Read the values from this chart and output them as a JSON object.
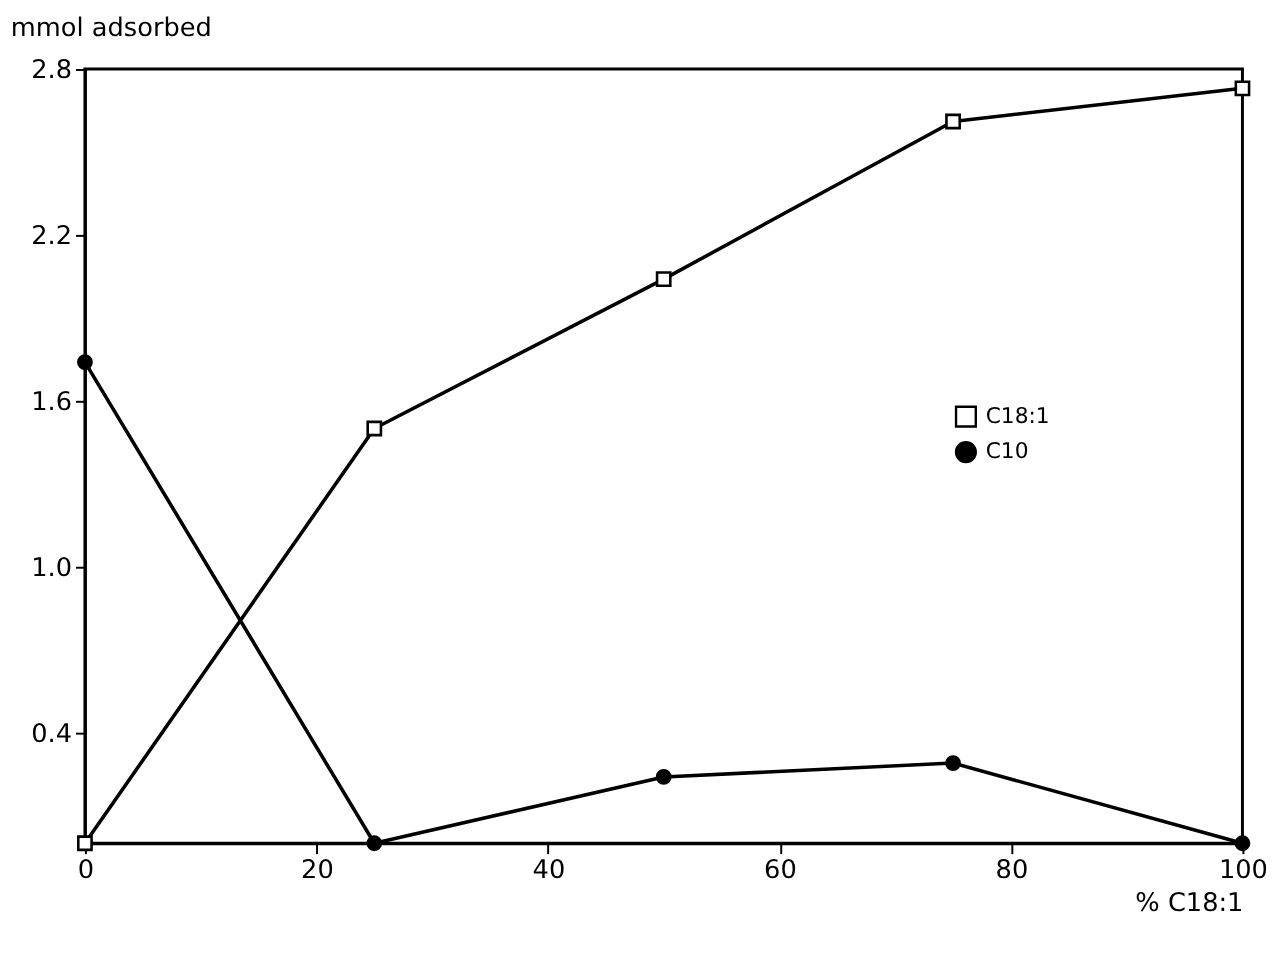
{
  "chart_data": {
    "type": "line",
    "xlabel": "% C18:1",
    "ylabel": "mmol adsorbed",
    "x": [
      0,
      25,
      50,
      75,
      100
    ],
    "series": [
      {
        "name": "C18:1",
        "color": "#000000",
        "marker": "square",
        "values": [
          0,
          1.5,
          2.04,
          2.61,
          2.73
        ]
      },
      {
        "name": "C10",
        "color": "#000000",
        "marker": "circle",
        "values": [
          1.74,
          0,
          0.24,
          0.29,
          0
        ]
      }
    ],
    "xlim": [
      0,
      100
    ],
    "xticks": [
      0,
      20,
      40,
      60,
      80,
      100
    ],
    "ylim": [
      0,
      2.8
    ],
    "yticks": [
      0.4,
      {
        "value": 1,
        "label": "1.0"
      },
      1.6,
      2.2,
      2.8
    ],
    "grid": false,
    "legend": "right",
    "line_style": "solid"
  }
}
